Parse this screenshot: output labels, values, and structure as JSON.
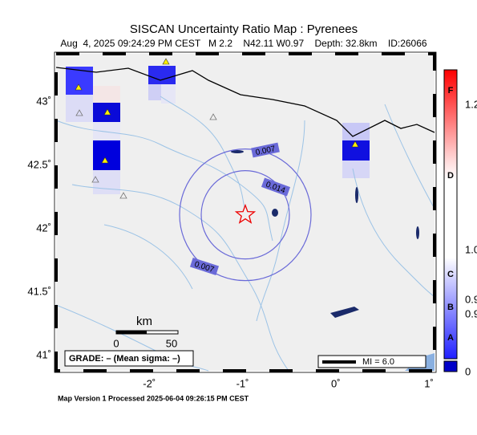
{
  "header": {
    "title": "SISCAN Uncertainty Ratio Map : Pyrenees",
    "subtitle": "Aug  4, 2025 09:24:29 PM CEST   M 2.2    N42.11 W0.97    Depth: 32.8km    ID:26066"
  },
  "map": {
    "xlim": [
      -3.0,
      1.06
    ],
    "ylim": [
      40.88,
      43.38
    ],
    "xticks": [
      {
        "value": -2,
        "label": "-2˚"
      },
      {
        "value": -1,
        "label": "-1˚"
      },
      {
        "value": 0,
        "label": "0˚"
      },
      {
        "value": 1,
        "label": "1˚"
      }
    ],
    "yticks": [
      {
        "value": 43,
        "label": "43˚"
      },
      {
        "value": 42.5,
        "label": "42.5˚"
      },
      {
        "value": 42,
        "label": "42˚"
      },
      {
        "value": 41.5,
        "label": "41.5˚"
      },
      {
        "value": 41,
        "label": "41˚"
      }
    ],
    "epicenter": {
      "lat": 42.11,
      "lon": -0.97
    },
    "contour_labels": [
      "0.007",
      "0.014",
      "0.007"
    ],
    "scale": {
      "unit": "km",
      "start": "0",
      "end": "50"
    },
    "grade": "GRADE: – (Mean sigma: –)",
    "legend": "MI = 6.0"
  },
  "colorbar": {
    "letters": [
      "F",
      "D",
      "C",
      "B",
      "A"
    ],
    "values": [
      "1.2",
      "1.0",
      "0.9",
      "0.9",
      "0"
    ]
  },
  "footer": "Map Version 1 Processed 2025-06-04 09:26:15 PM CEST"
}
